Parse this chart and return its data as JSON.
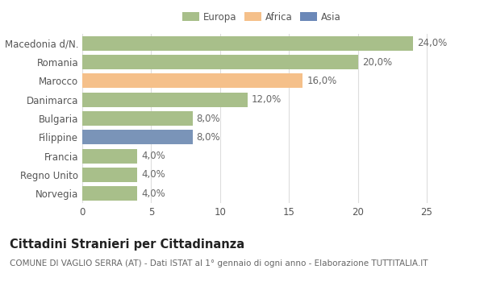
{
  "categories": [
    "Macedonia d/N.",
    "Romania",
    "Marocco",
    "Danimarca",
    "Bulgaria",
    "Filippine",
    "Francia",
    "Regno Unito",
    "Norvegia"
  ],
  "values": [
    24.0,
    20.0,
    16.0,
    12.0,
    8.0,
    8.0,
    4.0,
    4.0,
    4.0
  ],
  "colors": [
    "#a8bf8a",
    "#a8bf8a",
    "#f5c08a",
    "#a8bf8a",
    "#a8bf8a",
    "#7a94b8",
    "#a8bf8a",
    "#a8bf8a",
    "#a8bf8a"
  ],
  "labels": [
    "24,0%",
    "20,0%",
    "16,0%",
    "12,0%",
    "8,0%",
    "8,0%",
    "4,0%",
    "4,0%",
    "4,0%"
  ],
  "legend": [
    {
      "label": "Europa",
      "color": "#a8bf8a"
    },
    {
      "label": "Africa",
      "color": "#f5c08a"
    },
    {
      "label": "Asia",
      "color": "#6b88b8"
    }
  ],
  "xlim": [
    0,
    26
  ],
  "xticks": [
    0,
    5,
    10,
    15,
    20,
    25
  ],
  "title": "Cittadini Stranieri per Cittadinanza",
  "subtitle": "COMUNE DI VAGLIO SERRA (AT) - Dati ISTAT al 1° gennaio di ogni anno - Elaborazione TUTTITALIA.IT",
  "bg_color": "#ffffff",
  "grid_color": "#dddddd",
  "bar_height": 0.78,
  "label_fontsize": 8.5,
  "tick_fontsize": 8.5,
  "title_fontsize": 10.5,
  "subtitle_fontsize": 7.5,
  "ytick_fontsize": 8.5
}
